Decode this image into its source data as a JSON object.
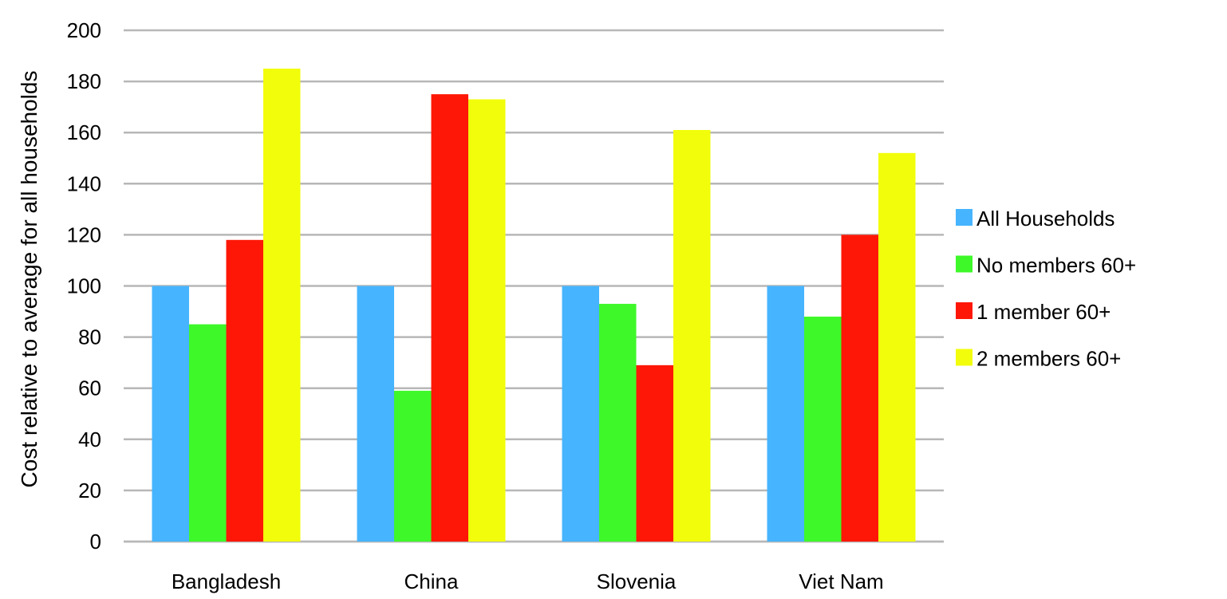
{
  "chart_data": {
    "type": "bar",
    "title": "",
    "xlabel": "",
    "ylabel": "Cost relative to average for all households",
    "categories": [
      "Bangladesh",
      "China",
      "Slovenia",
      "Viet Nam"
    ],
    "ylim": [
      0,
      200
    ],
    "yticks": [
      0,
      20,
      40,
      60,
      80,
      100,
      120,
      140,
      160,
      180,
      200
    ],
    "grid": true,
    "legend_position": "right",
    "series": [
      {
        "name": "All Households",
        "color": "#47b4ff",
        "values": [
          100,
          100,
          100,
          100
        ]
      },
      {
        "name": "No members 60+",
        "color": "#3ef82a",
        "values": [
          85,
          59,
          93,
          88
        ]
      },
      {
        "name": "1 member 60+",
        "color": "#fe1706",
        "values": [
          118,
          175,
          69,
          120
        ]
      },
      {
        "name": "2 members 60+",
        "color": "#f2fd0b",
        "values": [
          185,
          173,
          161,
          152
        ]
      }
    ],
    "gridline_color": "#b7b7b7"
  }
}
